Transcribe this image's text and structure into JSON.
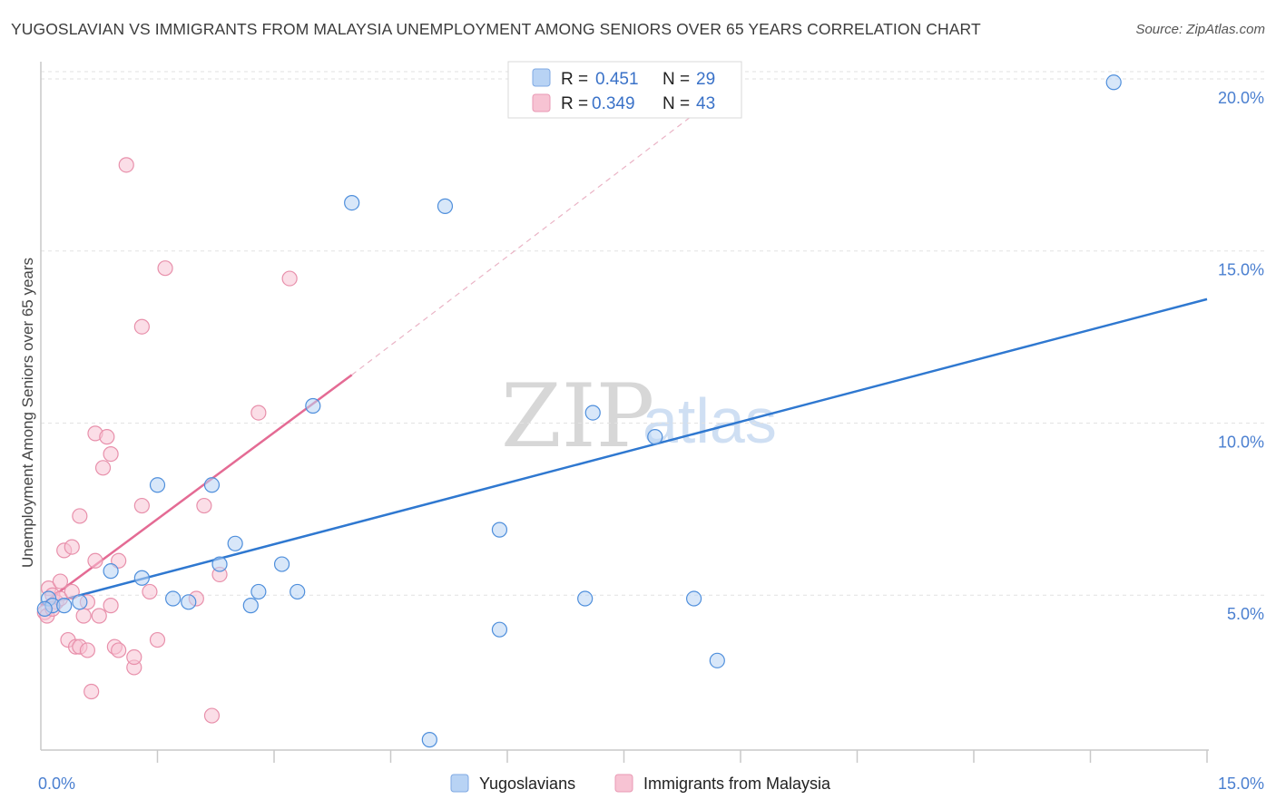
{
  "title": "YUGOSLAVIAN VS IMMIGRANTS FROM MALAYSIA UNEMPLOYMENT AMONG SENIORS OVER 65 YEARS CORRELATION CHART",
  "source": "Source: ZipAtlas.com",
  "watermark": {
    "zip": "ZIP",
    "atlas": "atlas"
  },
  "colors": {
    "blue": "#4f8fdc",
    "blue_fill": "#b8d3f4",
    "blue_line": "#2f78d0",
    "pink": "#e890ab",
    "pink_fill": "#f7c3d3",
    "pink_line": "#e46b94"
  },
  "legend": {
    "rows": [
      {
        "r_label": "R =",
        "r_value": "0.451",
        "n_label": "N =",
        "n_value": "29"
      },
      {
        "r_label": "R =",
        "r_value": "0.349",
        "n_label": "N =",
        "n_value": "43"
      }
    ]
  },
  "chart_data": {
    "type": "scatter",
    "title": "YUGOSLAVIAN VS IMMIGRANTS FROM MALAYSIA UNEMPLOYMENT AMONG SENIORS OVER 65 YEARS CORRELATION CHART",
    "xlabel": "",
    "ylabel": "Unemployment Among Seniors over 65 years",
    "xlim": [
      0,
      15
    ],
    "ylim": [
      0.5,
      20.5
    ],
    "x_tick_labels": [
      {
        "value": 0,
        "label": "0.0%"
      },
      {
        "value": 15,
        "label": "15.0%"
      }
    ],
    "y_tick_labels": [
      {
        "value": 5,
        "label": "5.0%"
      },
      {
        "value": 10,
        "label": "10.0%"
      },
      {
        "value": 15,
        "label": "15.0%"
      },
      {
        "value": 20,
        "label": "20.0%"
      }
    ],
    "series": [
      {
        "name": "Yugoslavians",
        "points": [
          [
            0.1,
            4.9
          ],
          [
            0.15,
            4.7
          ],
          [
            0.3,
            4.7
          ],
          [
            0.5,
            4.8
          ],
          [
            0.9,
            5.7
          ],
          [
            1.3,
            5.5
          ],
          [
            1.5,
            8.2
          ],
          [
            1.7,
            4.9
          ],
          [
            1.9,
            4.8
          ],
          [
            2.2,
            8.2
          ],
          [
            2.3,
            5.9
          ],
          [
            2.5,
            6.5
          ],
          [
            2.7,
            4.7
          ],
          [
            2.8,
            5.1
          ],
          [
            3.1,
            5.9
          ],
          [
            3.3,
            5.1
          ],
          [
            3.5,
            10.5
          ],
          [
            4.0,
            16.4
          ],
          [
            5.0,
            0.8
          ],
          [
            5.2,
            16.3
          ],
          [
            5.9,
            6.9
          ],
          [
            5.9,
            4.0
          ],
          [
            7.0,
            4.9
          ],
          [
            7.1,
            10.3
          ],
          [
            7.9,
            9.6
          ],
          [
            8.4,
            4.9
          ],
          [
            8.7,
            3.1
          ],
          [
            13.8,
            19.9
          ],
          [
            0.05,
            4.6
          ]
        ],
        "trend": {
          "x0": 0,
          "y0": 4.7,
          "x1": 15,
          "y1": 13.6
        }
      },
      {
        "name": "Immigrants from Malaysia",
        "points": [
          [
            0.05,
            4.5
          ],
          [
            0.1,
            5.2
          ],
          [
            0.15,
            5.0
          ],
          [
            0.2,
            4.8
          ],
          [
            0.25,
            5.4
          ],
          [
            0.3,
            6.3
          ],
          [
            0.35,
            3.7
          ],
          [
            0.4,
            6.4
          ],
          [
            0.45,
            3.5
          ],
          [
            0.5,
            7.3
          ],
          [
            0.5,
            3.5
          ],
          [
            0.55,
            4.4
          ],
          [
            0.6,
            3.4
          ],
          [
            0.65,
            2.2
          ],
          [
            0.7,
            6.0
          ],
          [
            0.7,
            9.7
          ],
          [
            0.75,
            4.4
          ],
          [
            0.8,
            8.7
          ],
          [
            0.85,
            9.6
          ],
          [
            0.9,
            4.7
          ],
          [
            0.9,
            9.1
          ],
          [
            0.95,
            3.5
          ],
          [
            1.0,
            3.4
          ],
          [
            1.0,
            6.0
          ],
          [
            1.1,
            17.5
          ],
          [
            1.2,
            2.9
          ],
          [
            1.2,
            3.2
          ],
          [
            1.3,
            7.6
          ],
          [
            1.3,
            12.8
          ],
          [
            1.4,
            5.1
          ],
          [
            1.5,
            3.7
          ],
          [
            1.6,
            14.5
          ],
          [
            2.0,
            4.9
          ],
          [
            2.1,
            7.6
          ],
          [
            2.2,
            1.5
          ],
          [
            2.3,
            5.6
          ],
          [
            2.8,
            10.3
          ],
          [
            3.2,
            14.2
          ],
          [
            0.08,
            4.4
          ],
          [
            0.15,
            4.6
          ],
          [
            0.25,
            4.9
          ],
          [
            0.6,
            4.8
          ],
          [
            0.4,
            5.1
          ]
        ],
        "trend": {
          "x0": 0,
          "y0": 4.7,
          "x1": 4.0,
          "y1": 11.4
        },
        "trend_extension": {
          "x0": 4.0,
          "y0": 11.4,
          "x1": 9.0,
          "y1": 20.0
        }
      }
    ]
  }
}
